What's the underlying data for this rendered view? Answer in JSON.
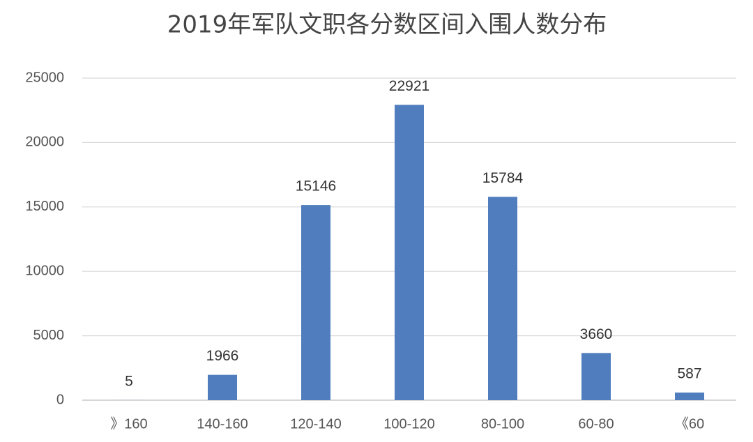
{
  "chart_data": {
    "type": "bar",
    "title": "2019年军队文职各分数区间入围人数分布",
    "categories": [
      "》160",
      "140-160",
      "120-140",
      "100-120",
      "80-100",
      "60-80",
      "《60"
    ],
    "values": [
      5,
      1966,
      15146,
      22921,
      15784,
      3660,
      587
    ],
    "color": "#4f7dbd",
    "ylim": [
      0,
      25000
    ],
    "yticks": [
      0,
      5000,
      10000,
      15000,
      20000,
      25000
    ],
    "grid": true
  }
}
